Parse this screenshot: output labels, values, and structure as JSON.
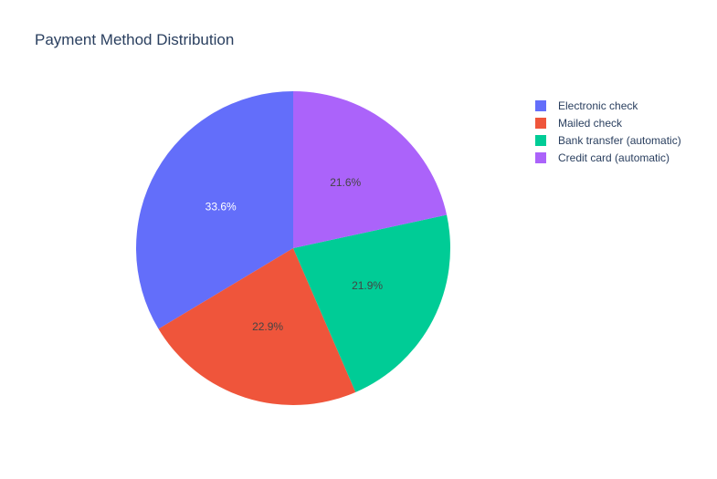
{
  "chart_data": {
    "type": "pie",
    "title": "Payment Method Distribution",
    "categories": [
      "Electronic check",
      "Mailed check",
      "Bank transfer (automatic)",
      "Credit card (automatic)"
    ],
    "values": [
      33.6,
      22.9,
      21.9,
      21.6
    ],
    "labels": [
      "33.6%",
      "22.9%",
      "21.9%",
      "21.6%"
    ],
    "colors": [
      "#636efa",
      "#ef553b",
      "#00cc96",
      "#ab63fa"
    ],
    "label_colors": [
      "#ffffff",
      "#444444",
      "#444444",
      "#444444"
    ],
    "direction": "counterclockwise",
    "legend_position": "top-right",
    "legend": [
      {
        "label": "Electronic check",
        "color": "#636efa"
      },
      {
        "label": "Mailed check",
        "color": "#ef553b"
      },
      {
        "label": "Bank transfer (automatic)",
        "color": "#00cc96"
      },
      {
        "label": "Credit card (automatic)",
        "color": "#ab63fa"
      }
    ]
  }
}
